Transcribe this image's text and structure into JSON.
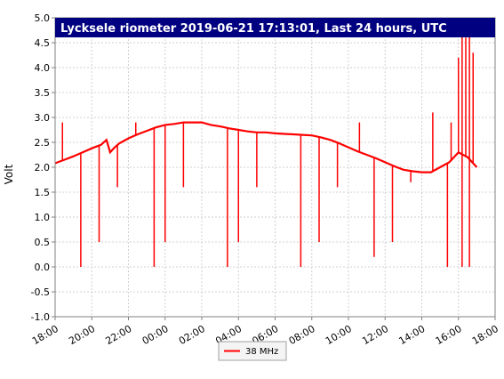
{
  "chart_data": {
    "type": "line",
    "title": "Lycksele riometer 2019-06-21 17:13:01, Last 24 hours, UTC",
    "ylabel": "Volt",
    "xlabel": "",
    "ylim": [
      -1.0,
      5.0
    ],
    "xlim": [
      18,
      42
    ],
    "y_ticks": [
      "-1.0",
      "-0.5",
      "0.0",
      "0.5",
      "1.0",
      "1.5",
      "2.0",
      "2.5",
      "3.0",
      "3.5",
      "4.0",
      "4.5",
      "5.0"
    ],
    "x_ticks": [
      "18:00",
      "20:00",
      "22:00",
      "00:00",
      "02:00",
      "04:00",
      "06:00",
      "08:00",
      "10:00",
      "12:00",
      "14:00",
      "16:00",
      "18:00"
    ],
    "grid": true,
    "legend_position": "bottom-center",
    "series": [
      {
        "name": "38 MHz",
        "color": "#ff0000",
        "x": [
          18.0,
          18.5,
          19.0,
          19.5,
          20.0,
          20.5,
          20.8,
          21.0,
          21.2,
          21.5,
          22.0,
          22.5,
          23.0,
          23.5,
          24.0,
          24.5,
          25.0,
          25.5,
          26.0,
          26.5,
          27.0,
          27.5,
          28.0,
          28.5,
          29.0,
          29.5,
          30.0,
          30.5,
          31.0,
          31.5,
          32.0,
          32.5,
          33.0,
          33.5,
          34.0,
          34.5,
          35.0,
          35.5,
          36.0,
          36.5,
          37.0,
          37.5,
          38.0,
          38.5,
          39.0,
          39.5,
          40.0,
          40.5,
          41.0
        ],
        "values": [
          2.08,
          2.15,
          2.22,
          2.3,
          2.38,
          2.45,
          2.55,
          2.3,
          2.38,
          2.48,
          2.58,
          2.66,
          2.73,
          2.8,
          2.85,
          2.87,
          2.9,
          2.9,
          2.9,
          2.85,
          2.82,
          2.78,
          2.75,
          2.72,
          2.7,
          2.7,
          2.68,
          2.67,
          2.66,
          2.65,
          2.64,
          2.6,
          2.55,
          2.48,
          2.4,
          2.32,
          2.25,
          2.18,
          2.1,
          2.02,
          1.95,
          1.92,
          1.9,
          1.9,
          2.0,
          2.1,
          2.3,
          2.2,
          2.0
        ]
      }
    ],
    "dips": [
      {
        "x": 19.4,
        "y": 0.0
      },
      {
        "x": 20.4,
        "y": 0.5
      },
      {
        "x": 21.4,
        "y": 1.6
      },
      {
        "x": 23.4,
        "y": 0.0
      },
      {
        "x": 24.0,
        "y": 1.4
      },
      {
        "x": 24.0,
        "y": 0.5
      },
      {
        "x": 25.0,
        "y": 1.6
      },
      {
        "x": 27.4,
        "y": 0.0
      },
      {
        "x": 28.0,
        "y": 0.5
      },
      {
        "x": 29.0,
        "y": 1.6
      },
      {
        "x": 31.4,
        "y": 0.0
      },
      {
        "x": 32.4,
        "y": 0.5
      },
      {
        "x": 33.4,
        "y": 1.6
      },
      {
        "x": 35.4,
        "y": 0.2
      },
      {
        "x": 36.4,
        "y": 0.5
      },
      {
        "x": 37.4,
        "y": 1.7
      },
      {
        "x": 39.4,
        "y": 0.0
      },
      {
        "x": 40.2,
        "y": 0.0
      },
      {
        "x": 40.6,
        "y": 0.0
      }
    ],
    "spikes": [
      {
        "x": 18.4,
        "y": 2.9
      },
      {
        "x": 22.4,
        "y": 2.9
      },
      {
        "x": 34.6,
        "y": 2.9
      },
      {
        "x": 38.6,
        "y": 3.1
      },
      {
        "x": 39.6,
        "y": 2.9
      },
      {
        "x": 40.0,
        "y": 4.2
      },
      {
        "x": 40.2,
        "y": 5.0
      },
      {
        "x": 40.4,
        "y": 4.6
      },
      {
        "x": 40.6,
        "y": 5.0
      },
      {
        "x": 40.8,
        "y": 4.3
      }
    ]
  }
}
